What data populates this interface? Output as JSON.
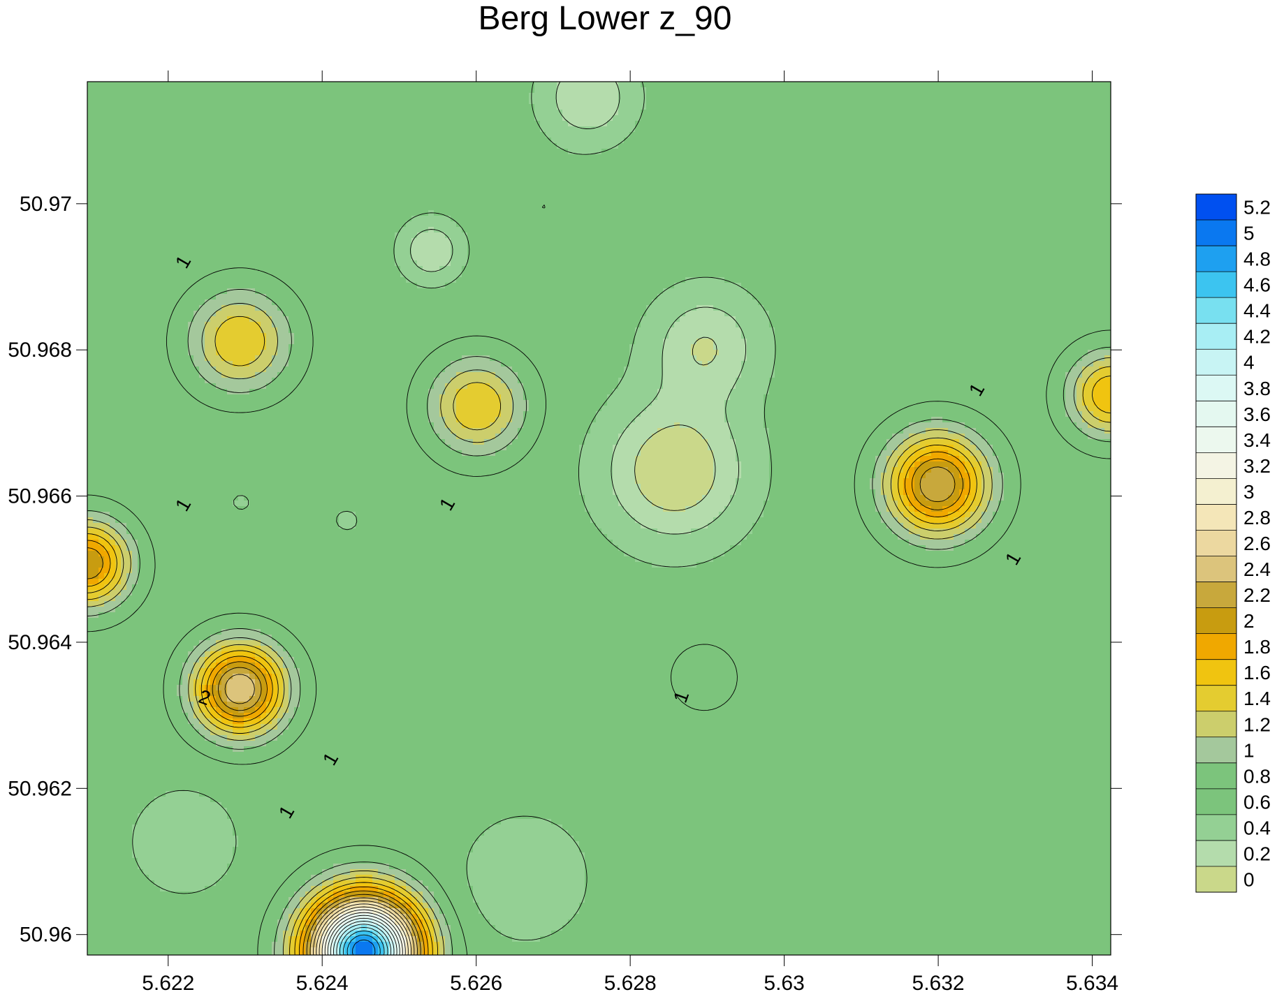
{
  "chart_data": {
    "type": "heatmap",
    "subtype": "filled-contour",
    "title": "Berg Lower z_90",
    "xlabel": "",
    "ylabel": "",
    "xlim": [
      5.62095,
      5.63424
    ],
    "ylim": [
      50.95972,
      50.97167
    ],
    "x_ticks": [
      "5.622",
      "5.624",
      "5.626",
      "5.628",
      "5.63",
      "5.632",
      "5.634"
    ],
    "x_tick_values": [
      5.622,
      5.624,
      5.626,
      5.628,
      5.63,
      5.632,
      5.634
    ],
    "y_ticks": [
      "50.96",
      "50.962",
      "50.964",
      "50.966",
      "50.968",
      "50.97"
    ],
    "y_tick_values": [
      50.96,
      50.962,
      50.964,
      50.966,
      50.968,
      50.97
    ],
    "colorbar": {
      "levels": [
        "5.2",
        "5",
        "4.8",
        "4.6",
        "4.4",
        "4.2",
        "4",
        "3.8",
        "3.6",
        "3.4",
        "3.2",
        "3",
        "2.8",
        "2.6",
        "2.4",
        "2.2",
        "2",
        "1.8",
        "1.6",
        "1.4",
        "1.2",
        "1",
        "0.8",
        "0.6",
        "0.4",
        "0.2",
        "0"
      ],
      "colors": [
        "#0050f0",
        "#0a78f0",
        "#1ea0f0",
        "#3cc4f0",
        "#78e0f0",
        "#a8eef4",
        "#c8f4f4",
        "#dcf8f4",
        "#e4f8f0",
        "#ecf8ee",
        "#f4f4e4",
        "#f4f0d0",
        "#f4e6b8",
        "#ecd8a0",
        "#dcc47c",
        "#c8a83c",
        "#c89c10",
        "#f0a800",
        "#f0c410",
        "#e4cc30",
        "#ccce6c",
        "#a4c89c",
        "#7cc47c",
        "#7cc47c",
        "#94d094",
        "#b4dcac",
        "#cad88a"
      ]
    },
    "contour_labels": [
      "1",
      "1",
      "1",
      "1",
      "1",
      "2",
      "1",
      "1",
      "1",
      "1",
      "1"
    ],
    "features": [
      {
        "x": 5.62454,
        "y": 50.95977,
        "peak": 5.2
      },
      {
        "x": 5.62293,
        "y": 50.96336,
        "peak": 2.6
      },
      {
        "x": 5.62095,
        "y": 50.96508,
        "peak": 2.2
      },
      {
        "x": 5.62293,
        "y": 50.96812,
        "peak": 1.6
      },
      {
        "x": 5.62601,
        "y": 50.96723,
        "peak": 1.6
      },
      {
        "x": 5.63199,
        "y": 50.96616,
        "peak": 2.4
      },
      {
        "x": 5.63424,
        "y": 50.96739,
        "peak": 1.8
      },
      {
        "x": 5.62896,
        "y": 50.96352,
        "peak": 1.0
      },
      {
        "x": 5.62858,
        "y": 50.96635,
        "peak": 0.0
      },
      {
        "x": 5.62898,
        "y": 50.96805,
        "peak": 0.2
      },
      {
        "x": 5.62542,
        "y": 50.96936,
        "peak": 0.2
      },
      {
        "x": 5.62745,
        "y": 50.97146,
        "peak": 0.2
      },
      {
        "x": 5.62663,
        "y": 50.96077,
        "peak": 0.4
      },
      {
        "x": 5.62221,
        "y": 50.96127,
        "peak": 0.4
      },
      {
        "x": 5.62687,
        "y": 50.96996,
        "peak": 0.6
      },
      {
        "x": 5.63012,
        "y": 50.97059,
        "peak": 0.6
      },
      {
        "x": 5.62292,
        "y": 50.96592,
        "peak": 0.6
      },
      {
        "x": 5.62436,
        "y": 50.96566,
        "peak": 0.6
      }
    ],
    "grid": false,
    "legend": "colorbar-right"
  }
}
